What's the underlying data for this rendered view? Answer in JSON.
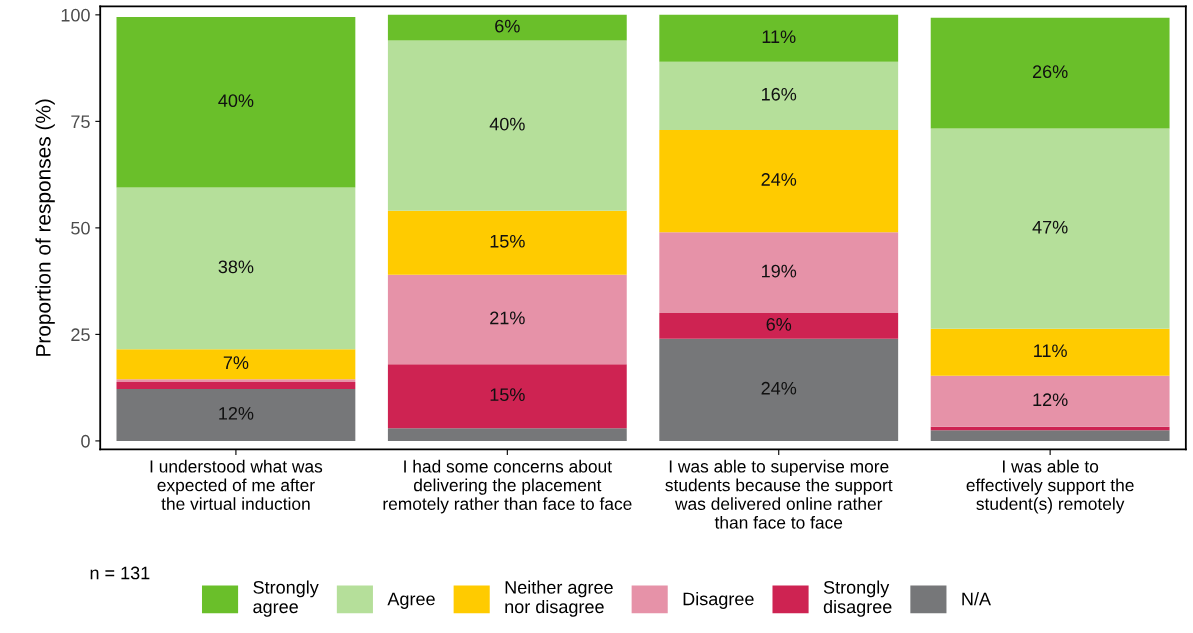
{
  "chart_data": {
    "type": "bar",
    "stacked": true,
    "ylabel": "Proportion of responses (%)",
    "categories": [
      "I understood what was\nexpected of me after\nthe virtual induction",
      "I had some concerns about\ndelivering the placement\nremotely rather than face to face",
      "I was able to supervise more\nstudents because the support\nwas delivered online rather\nthan face to face",
      "I was able to\neffectively support the\nstudent(s) remotely"
    ],
    "ylim": [
      -2,
      102
    ],
    "yticks": [
      0,
      25,
      50,
      75,
      100
    ],
    "grid": false,
    "legend": "bottom",
    "series": [
      {
        "name": "N/A",
        "color": "#767779",
        "values": [
          12.2,
          3,
          24,
          2.5
        ],
        "value_labels": [
          "12%",
          null,
          "24%",
          null
        ]
      },
      {
        "name": "Strongly\ndisagree",
        "color": "#ce2352",
        "values": [
          1.6,
          15,
          6,
          0.8
        ],
        "value_labels": [
          null,
          "15%",
          "6%",
          null
        ]
      },
      {
        "name": "Disagree",
        "color": "#e692a8",
        "values": [
          0.7,
          21,
          19,
          12
        ],
        "value_labels": [
          null,
          "21%",
          "19%",
          "12%"
        ]
      },
      {
        "name": "Neither agree\nnor disagree",
        "color": "#ffcb00",
        "values": [
          7,
          15,
          24,
          11
        ],
        "value_labels": [
          "7%",
          "15%",
          "24%",
          "11%"
        ]
      },
      {
        "name": "Agree",
        "color": "#b5df9a",
        "values": [
          38,
          40,
          16,
          47
        ],
        "value_labels": [
          "38%",
          "40%",
          "16%",
          "47%"
        ]
      },
      {
        "name": "Strongly\nagree",
        "color": "#6abf2a",
        "values": [
          40,
          6,
          11,
          26
        ],
        "value_labels": [
          "40%",
          "6%",
          "11%",
          "26%"
        ]
      }
    ],
    "annotations": [
      "n = 131"
    ]
  }
}
